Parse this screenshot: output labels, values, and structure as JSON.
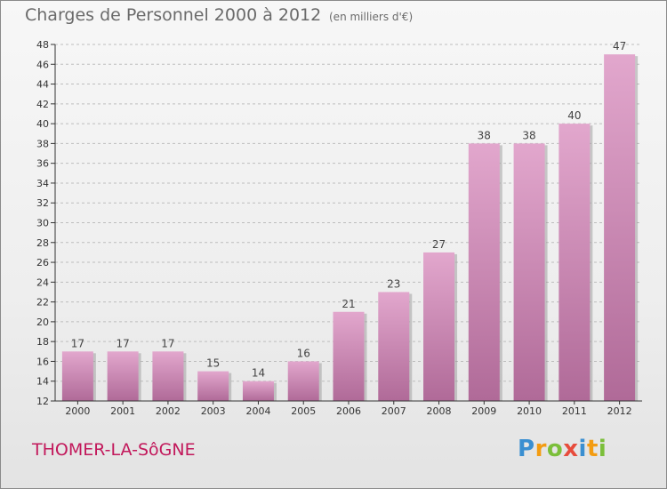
{
  "header": {
    "title": "Charges de Personnel 2000 à 2012",
    "subtitle": "(en milliers d'€)"
  },
  "commune_name": "THOMER-LA-SôGNE",
  "logo": {
    "letters": [
      "P",
      "r",
      "o",
      "x",
      "i",
      "t",
      "i"
    ],
    "colors": [
      "#3a8fd1",
      "#f39c12",
      "#7bbf3a",
      "#e74c3c",
      "#3a8fd1",
      "#f39c12",
      "#7bbf3a"
    ]
  },
  "colors": {
    "bar_top": "#e2a7cd",
    "bar_bottom": "#b06a98",
    "bar_shadow": "#9a9a9a",
    "axis": "#333333",
    "grid": "#bdbdbd",
    "commune": "#c2185b"
  },
  "chart_data": {
    "type": "bar",
    "title": "Charges de Personnel 2000 à 2012",
    "subtitle": "(en milliers d'€)",
    "categories": [
      "2000",
      "2001",
      "2002",
      "2003",
      "2004",
      "2005",
      "2006",
      "2007",
      "2008",
      "2009",
      "2010",
      "2011",
      "2012"
    ],
    "values": [
      17,
      17,
      17,
      15,
      14,
      16,
      21,
      23,
      27,
      38,
      38,
      40,
      47
    ],
    "ylim": [
      12,
      48
    ],
    "yticks": [
      12,
      14,
      16,
      18,
      20,
      22,
      24,
      26,
      28,
      30,
      32,
      34,
      36,
      38,
      40,
      42,
      44,
      46,
      48
    ],
    "grid": true
  }
}
